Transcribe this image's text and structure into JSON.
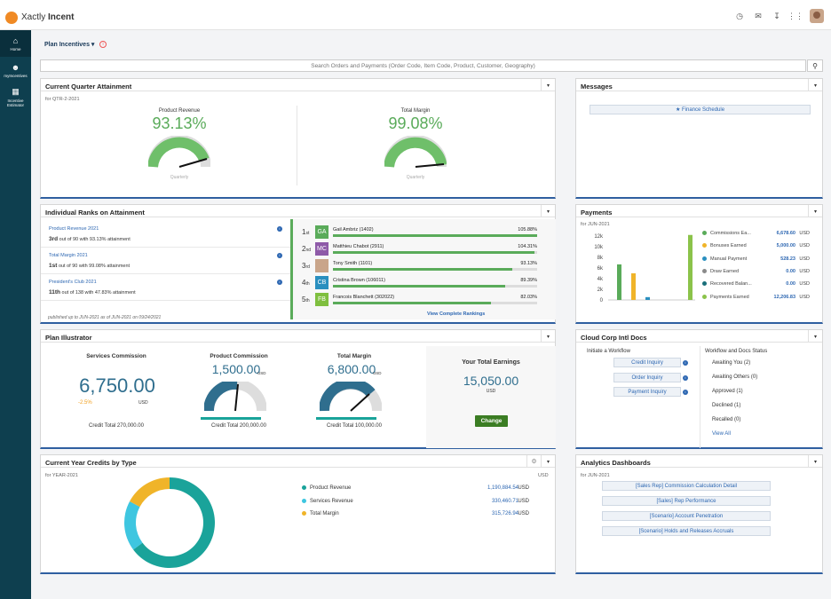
{
  "app": {
    "brand_light": "Xactly",
    "brand_bold": "Incent"
  },
  "nav": {
    "items": [
      {
        "label": "Home",
        "icon": "home-icon"
      },
      {
        "label": "myIncentives",
        "icon": "users-icon"
      },
      {
        "label": "Incentive Estimator",
        "icon": "calculator-icon"
      }
    ]
  },
  "header": {
    "title": "Plan Incentives ▾"
  },
  "search": {
    "placeholder": "Search Orders and Payments (Order Code, Item Code, Product, Customer, Geography)"
  },
  "quarter": {
    "title": "Current Quarter Attainment",
    "period": "for QTR-2-2021",
    "gauges": [
      {
        "label": "Product Revenue",
        "value": "93.13%",
        "sublabel": "Quarterly"
      },
      {
        "label": "Total Margin",
        "value": "99.08%",
        "sublabel": "Quarterly"
      }
    ]
  },
  "messages": {
    "title": "Messages",
    "link": "★ Finance Schedule"
  },
  "ranks": {
    "title": "Individual Ranks on Attainment",
    "groups": [
      {
        "name": "Product Revenue 2021",
        "rank": "3rd",
        "desc": "out of 90 with 93.13% attainment"
      },
      {
        "name": "Total Margin 2021",
        "rank": "1st",
        "desc": "out of 90 with 99.08% attainment"
      },
      {
        "name": "President's Club 2021",
        "rank": "11th",
        "desc": "out of 138 with 47.83% attainment"
      }
    ],
    "footnote": "published up to JUN-2021 as of JUN-2021 on 09/24/2021",
    "list": [
      {
        "n": "1",
        "suf": "st",
        "init": "GA",
        "color": "#5aab5a",
        "name": "Gail Ambriz (1402)",
        "pct": "105.88%",
        "fill": 1.0
      },
      {
        "n": "2",
        "suf": "nd",
        "init": "MC",
        "color": "#8e5aa8",
        "name": "Matthieu Chabot (2911)",
        "pct": "104.31%",
        "fill": 0.985
      },
      {
        "n": "3",
        "suf": "rd",
        "init": "",
        "color": "#c9a58a",
        "name": "Tony Smith (1101)",
        "pct": "93.13%",
        "fill": 0.88
      },
      {
        "n": "4",
        "suf": "th",
        "init": "CB",
        "color": "#2a8fbf",
        "name": "Cristina Brown (106011)",
        "pct": "89.39%",
        "fill": 0.845
      },
      {
        "n": "5",
        "suf": "th",
        "init": "FB",
        "color": "#7fbf3f",
        "name": "Francois Blanchett (302022)",
        "pct": "82.03%",
        "fill": 0.775
      }
    ],
    "view_all": "View Complete Rankings"
  },
  "payments": {
    "title": "Payments",
    "period": "for JUN-2021",
    "yticks": [
      "12k",
      "10k",
      "8k",
      "6k",
      "4k",
      "2k",
      "0"
    ],
    "rows": [
      {
        "label": "Commissions Ea...",
        "value": "6,678.60",
        "unit": "USD",
        "color": "#5aab5a"
      },
      {
        "label": "Bonuses Earned",
        "value": "5,000.00",
        "unit": "USD",
        "color": "#f0b429"
      },
      {
        "label": "Manual Payment",
        "value": "528.23",
        "unit": "USD",
        "color": "#2a8fbf"
      },
      {
        "label": "Draw Earned",
        "value": "0.00",
        "unit": "USD",
        "color": "#8a8a8a"
      },
      {
        "label": "Recovered Balan...",
        "value": "0.00",
        "unit": "USD",
        "color": "#1a6f7a"
      },
      {
        "label": "Payments Earned",
        "value": "12,206.83",
        "unit": "USD",
        "color": "#8bc34a"
      }
    ]
  },
  "illustrator": {
    "title": "Plan Illustrator",
    "services": {
      "label": "Services Commission",
      "value": "6,750.00",
      "change": "-2.5%",
      "unit": "USD",
      "credit": "Credit Total 270,000.00"
    },
    "product": {
      "label": "Product Commission",
      "value": "1,500.00",
      "unit": "USD",
      "credit": "Credit Total 200,000.00"
    },
    "margin": {
      "label": "Total Margin",
      "value": "6,800.00",
      "unit": "USD",
      "credit": "Credit Total 100,000.00"
    },
    "earnings": {
      "label": "Your Total Earnings",
      "value": "15,050.00",
      "unit": "USD",
      "button": "Change"
    }
  },
  "docs": {
    "title": "Cloud Corp Intl Docs",
    "initiate": "Initiate a Workflow",
    "status_title": "Workflow and Docs Status",
    "workflows": [
      "Credit Inquiry",
      "Order Inquiry",
      "Payment Inquiry"
    ],
    "statuses": [
      "Awaiting You (2)",
      "Awaiting Others (0)",
      "Approved (1)",
      "Declined (1)",
      "Recalled (0)"
    ],
    "view_all": "View All"
  },
  "credits": {
    "title": "Current Year Credits by Type",
    "period": "for YEAR-2021",
    "currency": "USD",
    "rows": [
      {
        "label": "Product Revenue",
        "value": "1,190,884.54",
        "unit": "USD",
        "color": "#1aa39a"
      },
      {
        "label": "Services Revenue",
        "value": "330,460.71",
        "unit": "USD",
        "color": "#3ec6e0"
      },
      {
        "label": "Total Margin",
        "value": "315,726.94",
        "unit": "USD",
        "color": "#f0b429"
      }
    ]
  },
  "chart_data": [
    {
      "type": "bar",
      "title": "Payments",
      "categories": [
        "Commissions Earned",
        "Bonuses Earned",
        "Manual Payment",
        "Draw Earned",
        "Recovered Balance",
        "Payments Earned"
      ],
      "values": [
        6678.6,
        5000.0,
        528.23,
        0,
        0,
        12206.83
      ],
      "ylim": [
        0,
        12000
      ]
    },
    {
      "type": "pie",
      "title": "Current Year Credits by Type",
      "categories": [
        "Product Revenue",
        "Services Revenue",
        "Total Margin"
      ],
      "values": [
        1190884.54,
        330460.71,
        315726.94
      ]
    }
  ],
  "analytics": {
    "title": "Analytics Dashboards",
    "period": "for JUN-2021",
    "links": [
      "[Sales Rep] Commission Calculation Detail",
      "[Sales] Rep Performance",
      "[Scenario] Account Penetration",
      "[Scenario] Holds and Releases Accruals"
    ]
  }
}
